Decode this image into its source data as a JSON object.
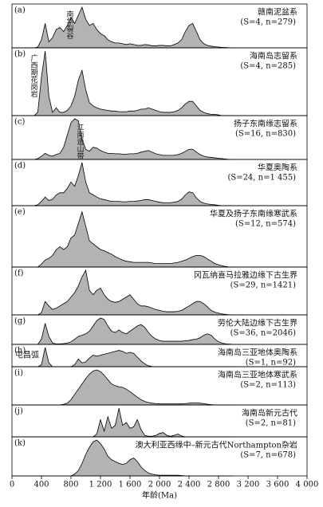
{
  "chart_data": {
    "type": "area",
    "xlabel": "年龄(Ma)",
    "xlim": [
      0,
      4000
    ],
    "xticks": [
      0,
      400,
      800,
      {
        "value": 1200,
        "label": "1 200"
      },
      {
        "value": 1600,
        "label": "1 600"
      },
      {
        "value": 2000,
        "label": "2 000"
      },
      {
        "value": 2400,
        "label": "2 400"
      },
      {
        "value": 2800,
        "label": "2 800"
      },
      {
        "value": 3200,
        "label": "3 200"
      },
      {
        "value": 3600,
        "label": "3 600"
      },
      {
        "value": 4000,
        "label": "4 000"
      }
    ],
    "ylim": [
      0,
      1
    ],
    "color": "#b3b3b3",
    "x": [
      0,
      50,
      100,
      150,
      200,
      250,
      300,
      350,
      400,
      450,
      500,
      550,
      600,
      650,
      700,
      750,
      800,
      850,
      900,
      950,
      1000,
      1050,
      1100,
      1150,
      1200,
      1250,
      1300,
      1350,
      1400,
      1450,
      1500,
      1550,
      1600,
      1650,
      1700,
      1750,
      1800,
      1850,
      1900,
      1950,
      2000,
      2050,
      2100,
      2150,
      2200,
      2250,
      2300,
      2350,
      2400,
      2450,
      2500,
      2550,
      2600,
      2650,
      2700,
      2750,
      2800,
      2850,
      2900,
      2950,
      3000
    ],
    "series": [
      {
        "label": "(a)",
        "name": "赣南泥盆系",
        "stats": "(S=4, n=279)",
        "annotation": "南华裂谷",
        "values": [
          0,
          0,
          0,
          0,
          0,
          0,
          0,
          0.02,
          0.2,
          0.6,
          0.15,
          0.25,
          0.45,
          0.5,
          0.4,
          0.55,
          0.75,
          0.6,
          0.8,
          1.0,
          0.7,
          0.55,
          0.6,
          0.45,
          0.35,
          0.3,
          0.2,
          0.15,
          0.12,
          0.12,
          0.1,
          0.08,
          0.1,
          0.08,
          0.06,
          0.06,
          0.08,
          0.07,
          0.05,
          0.05,
          0.06,
          0.06,
          0.05,
          0.05,
          0.08,
          0.12,
          0.2,
          0.4,
          0.55,
          0.6,
          0.4,
          0.2,
          0.1,
          0.06,
          0.04,
          0.03,
          0.02,
          0.01,
          0.01,
          0,
          0
        ]
      },
      {
        "label": "(b)",
        "name": "海南岛志留系",
        "stats": "(S=4, n=285)",
        "annotation": "广西期花岗岩",
        "values": [
          0,
          0,
          0,
          0,
          0,
          0,
          0,
          0.05,
          0.6,
          1.0,
          0.3,
          0.05,
          0.12,
          0.05,
          0.05,
          0.08,
          0.15,
          0.3,
          0.55,
          0.7,
          0.4,
          0.2,
          0.15,
          0.12,
          0.1,
          0.09,
          0.08,
          0.07,
          0.07,
          0.06,
          0.06,
          0.06,
          0.07,
          0.07,
          0.08,
          0.1,
          0.1,
          0.12,
          0.1,
          0.08,
          0.06,
          0.05,
          0.05,
          0.05,
          0.06,
          0.08,
          0.12,
          0.18,
          0.22,
          0.22,
          0.15,
          0.08,
          0.05,
          0.03,
          0.02,
          0.02,
          0.01,
          0,
          0,
          0,
          0
        ]
      },
      {
        "label": "(c)",
        "name": "扬子东南缘志留系",
        "stats": "(S=16, n=830)",
        "annotation": "江南造山带",
        "values": [
          0,
          0,
          0,
          0,
          0,
          0,
          0,
          0.02,
          0.08,
          0.15,
          0.1,
          0.08,
          0.12,
          0.15,
          0.3,
          0.6,
          0.9,
          1.0,
          0.95,
          0.5,
          0.25,
          0.2,
          0.3,
          0.28,
          0.22,
          0.18,
          0.15,
          0.15,
          0.14,
          0.14,
          0.13,
          0.13,
          0.14,
          0.14,
          0.15,
          0.18,
          0.2,
          0.22,
          0.18,
          0.14,
          0.12,
          0.1,
          0.1,
          0.1,
          0.1,
          0.12,
          0.15,
          0.2,
          0.25,
          0.25,
          0.18,
          0.12,
          0.08,
          0.06,
          0.05,
          0.04,
          0.03,
          0.02,
          0.01,
          0,
          0
        ]
      },
      {
        "label": "(d)",
        "name": "华夏奥陶系",
        "stats": "(S=24, n=1 455)",
        "values": [
          0,
          0,
          0,
          0,
          0,
          0,
          0,
          0.02,
          0.1,
          0.2,
          0.12,
          0.15,
          0.25,
          0.3,
          0.3,
          0.4,
          0.55,
          0.45,
          0.7,
          1.0,
          0.55,
          0.3,
          0.25,
          0.2,
          0.16,
          0.14,
          0.12,
          0.1,
          0.1,
          0.1,
          0.09,
          0.09,
          0.1,
          0.1,
          0.11,
          0.12,
          0.14,
          0.14,
          0.12,
          0.1,
          0.08,
          0.07,
          0.07,
          0.07,
          0.08,
          0.1,
          0.15,
          0.25,
          0.32,
          0.3,
          0.18,
          0.1,
          0.06,
          0.04,
          0.03,
          0.02,
          0.01,
          0,
          0,
          0,
          0
        ]
      },
      {
        "label": "(e)",
        "name": "华夏及扬子东南缘寒武系",
        "stats": "(S=12, n=574)",
        "values": [
          0,
          0,
          0,
          0,
          0,
          0,
          0,
          0,
          0.05,
          0.12,
          0.15,
          0.2,
          0.3,
          0.35,
          0.3,
          0.35,
          0.5,
          0.55,
          0.75,
          0.95,
          0.7,
          0.45,
          0.4,
          0.35,
          0.3,
          0.28,
          0.25,
          0.22,
          0.18,
          0.15,
          0.12,
          0.1,
          0.09,
          0.08,
          0.08,
          0.08,
          0.08,
          0.08,
          0.07,
          0.06,
          0.06,
          0.06,
          0.06,
          0.06,
          0.07,
          0.08,
          0.1,
          0.12,
          0.15,
          0.18,
          0.2,
          0.2,
          0.18,
          0.14,
          0.1,
          0.06,
          0.04,
          0.02,
          0.01,
          0,
          0
        ]
      },
      {
        "label": "(f)",
        "name": "冈瓦纳喜马拉雅边缘下古生界",
        "stats": "(S=29, n=1421)",
        "values": [
          0,
          0,
          0,
          0,
          0,
          0,
          0,
          0,
          0.05,
          0.3,
          0.2,
          0.12,
          0.15,
          0.2,
          0.25,
          0.3,
          0.4,
          0.5,
          0.65,
          0.85,
          1.0,
          0.55,
          0.45,
          0.55,
          0.6,
          0.45,
          0.35,
          0.3,
          0.28,
          0.3,
          0.35,
          0.4,
          0.45,
          0.35,
          0.25,
          0.2,
          0.2,
          0.18,
          0.15,
          0.12,
          0.1,
          0.08,
          0.07,
          0.07,
          0.07,
          0.08,
          0.1,
          0.15,
          0.2,
          0.25,
          0.3,
          0.3,
          0.25,
          0.18,
          0.1,
          0.06,
          0.04,
          0.02,
          0.01,
          0,
          0
        ]
      },
      {
        "label": "(g)",
        "name": "劳伦大陆边缘下古生界",
        "stats": "(S=36, n=2046)",
        "values": [
          0,
          0,
          0,
          0,
          0,
          0,
          0,
          0,
          0.2,
          0.8,
          0.3,
          0.05,
          0.02,
          0.02,
          0.03,
          0.05,
          0.1,
          0.2,
          0.3,
          0.35,
          0.4,
          0.5,
          0.7,
          0.9,
          1.0,
          0.95,
          0.7,
          0.5,
          0.45,
          0.55,
          0.45,
          0.4,
          0.5,
          0.6,
          0.7,
          0.75,
          0.65,
          0.45,
          0.3,
          0.2,
          0.15,
          0.12,
          0.12,
          0.12,
          0.12,
          0.12,
          0.12,
          0.14,
          0.15,
          0.18,
          0.2,
          0.25,
          0.35,
          0.4,
          0.35,
          0.2,
          0.1,
          0.05,
          0.02,
          0.01,
          0
        ]
      },
      {
        "label": "(h)",
        "name": "海南岛三亚地体奥陶系",
        "stats": "(S=1, n=92)",
        "annotation": "屯昌弧",
        "values": [
          0,
          0,
          0,
          0,
          0,
          0,
          0,
          0,
          0.1,
          1.0,
          0.2,
          0,
          0,
          0,
          0,
          0,
          0,
          0.1,
          0.4,
          0.2,
          0.25,
          0.45,
          0.6,
          0.55,
          0.6,
          0.65,
          0.7,
          0.75,
          0.8,
          0.85,
          0.8,
          0.7,
          0.75,
          0.7,
          0.5,
          0.3,
          0.15,
          0.05,
          0.01,
          0,
          0,
          0,
          0,
          0,
          0,
          0,
          0,
          0,
          0,
          0,
          0,
          0,
          0,
          0,
          0,
          0,
          0,
          0,
          0,
          0,
          0
        ]
      },
      {
        "label": "(i)",
        "name": "海南岛三亚地体寒武系",
        "stats": "(S=2, n=113)",
        "values": [
          0,
          0,
          0,
          0,
          0,
          0,
          0,
          0,
          0,
          0,
          0,
          0,
          0,
          0,
          0.02,
          0.05,
          0.15,
          0.3,
          0.45,
          0.6,
          0.75,
          0.88,
          0.97,
          1.0,
          0.95,
          0.85,
          0.72,
          0.6,
          0.55,
          0.52,
          0.5,
          0.45,
          0.38,
          0.3,
          0.22,
          0.15,
          0.1,
          0.07,
          0.05,
          0.04,
          0.03,
          0.03,
          0.03,
          0.03,
          0.03,
          0.03,
          0.03,
          0.04,
          0.05,
          0.06,
          0.06,
          0.05,
          0.04,
          0.02,
          0.01,
          0,
          0,
          0,
          0,
          0,
          0
        ]
      },
      {
        "label": "(j)",
        "name": "海南岛新元古代",
        "stats": "(S=2, n=81)",
        "values": [
          0,
          0,
          0,
          0,
          0,
          0,
          0,
          0,
          0,
          0,
          0,
          0,
          0,
          0,
          0,
          0,
          0,
          0,
          0,
          0,
          0,
          0,
          0,
          0.1,
          0.6,
          0.2,
          0.7,
          0.3,
          0.4,
          1.0,
          0.4,
          0.5,
          0.3,
          0.35,
          0.6,
          0.25,
          0.05,
          0.02,
          0.02,
          0.05,
          0.12,
          0.15,
          0.05,
          0.02,
          0.05,
          0.1,
          0.03,
          0,
          0,
          0,
          0,
          0,
          0,
          0,
          0,
          0,
          0,
          0,
          0,
          0,
          0
        ]
      },
      {
        "label": "(k)",
        "name": "澳大利亚西缘中–新元古代Northampton杂岩",
        "stats": "(S=7, n=678)",
        "values": [
          0,
          0,
          0,
          0,
          0,
          0,
          0,
          0,
          0,
          0,
          0,
          0,
          0,
          0,
          0,
          0,
          0,
          0.05,
          0.15,
          0.35,
          0.6,
          0.8,
          0.95,
          1.0,
          0.9,
          0.75,
          0.55,
          0.45,
          0.4,
          0.35,
          0.32,
          0.35,
          0.45,
          0.5,
          0.4,
          0.25,
          0.15,
          0.08,
          0.05,
          0.03,
          0.02,
          0.02,
          0.02,
          0.02,
          0.02,
          0.02,
          0.01,
          0,
          0,
          0,
          0,
          0,
          0,
          0,
          0,
          0,
          0,
          0,
          0,
          0,
          0
        ]
      }
    ]
  }
}
